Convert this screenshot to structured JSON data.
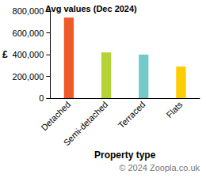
{
  "chart_data": {
    "type": "bar",
    "title": "Avg values (Dec 2024)",
    "x_label": "Property type",
    "y_label": "£",
    "annotations": [
      "© 2024 Zoopla.co.uk"
    ],
    "categories": [
      "Detached",
      "Semi-detached",
      "Terraced",
      "Flats"
    ],
    "values": [
      740000,
      420000,
      400000,
      290000
    ],
    "colors": [
      "#f05a28",
      "#b5d334",
      "#72cac8",
      "#ffcc00"
    ],
    "ylim": [
      0,
      800000
    ],
    "yticks": [
      {
        "value": 0,
        "label": "0"
      },
      {
        "value": 200000,
        "label": "200,000"
      },
      {
        "value": 400000,
        "label": "400,000"
      },
      {
        "value": 600000,
        "label": "600,000"
      },
      {
        "value": 800000,
        "label": "800,000"
      }
    ],
    "grid": false
  }
}
